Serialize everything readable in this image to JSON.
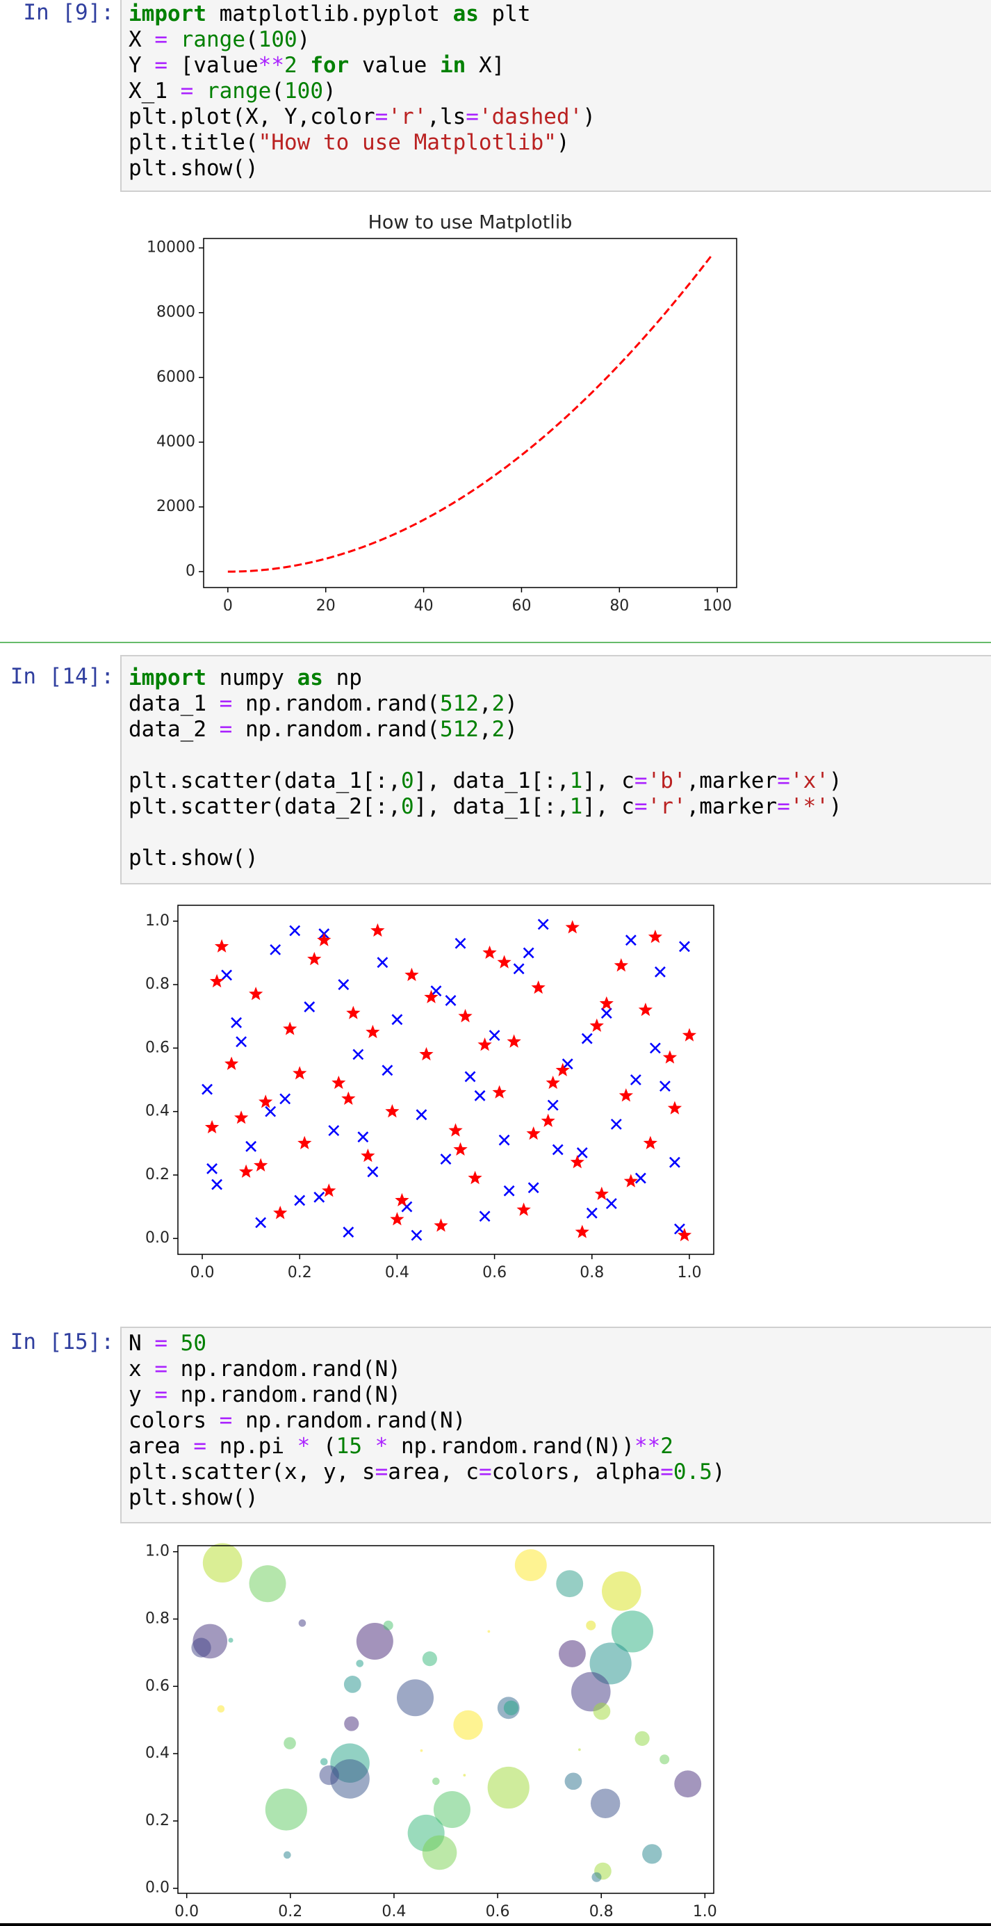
{
  "cells": [
    {
      "prompt": "In [9]:",
      "lines": [
        [
          {
            "text": "import",
            "color": "#008000",
            "bold": true
          },
          " matplotlib.pyplot ",
          {
            "text": "as",
            "color": "#008000",
            "bold": true
          },
          " plt"
        ],
        [
          "X ",
          {
            "text": "=",
            "color": "#aa22ff"
          },
          " ",
          {
            "text": "range",
            "color": "#008000"
          },
          "(",
          {
            "text": "100",
            "color": "#008000"
          },
          ")"
        ],
        [
          "Y ",
          {
            "text": "=",
            "color": "#aa22ff"
          },
          " [value",
          {
            "text": "**",
            "color": "#aa22ff"
          },
          {
            "text": "2",
            "color": "#008000"
          },
          " ",
          {
            "text": "for",
            "color": "#008000",
            "bold": true
          },
          " value ",
          {
            "text": "in",
            "color": "#008000",
            "bold": true
          },
          " X]"
        ],
        [
          "X_1 ",
          {
            "text": "=",
            "color": "#aa22ff"
          },
          " ",
          {
            "text": "range",
            "color": "#008000"
          },
          "(",
          {
            "text": "100",
            "color": "#008000"
          },
          ")"
        ],
        [
          "plt.plot(X, Y,color",
          {
            "text": "=",
            "color": "#aa22ff"
          },
          {
            "text": "'r'",
            "color": "#ba2121"
          },
          ",ls",
          {
            "text": "=",
            "color": "#aa22ff"
          },
          {
            "text": "'dashed'",
            "color": "#ba2121"
          },
          ")"
        ],
        [
          "plt.title(",
          {
            "text": "\"How to use Matplotlib\"",
            "color": "#ba2121"
          },
          ")"
        ],
        [
          "plt.show()"
        ]
      ],
      "chart_data": {
        "type": "line",
        "title": "How to use Matplotlib",
        "color": "#ff0000",
        "line_style": "dashed",
        "x": [
          0,
          1,
          2,
          3,
          4,
          5,
          6,
          7,
          8,
          9,
          10,
          11,
          12,
          13,
          14,
          15,
          16,
          17,
          18,
          19,
          20,
          21,
          22,
          23,
          24,
          25,
          26,
          27,
          28,
          29,
          30,
          31,
          32,
          33,
          34,
          35,
          36,
          37,
          38,
          39,
          40,
          41,
          42,
          43,
          44,
          45,
          46,
          47,
          48,
          49,
          50,
          51,
          52,
          53,
          54,
          55,
          56,
          57,
          58,
          59,
          60,
          61,
          62,
          63,
          64,
          65,
          66,
          67,
          68,
          69,
          70,
          71,
          72,
          73,
          74,
          75,
          76,
          77,
          78,
          79,
          80,
          81,
          82,
          83,
          84,
          85,
          86,
          87,
          88,
          89,
          90,
          91,
          92,
          93,
          94,
          95,
          96,
          97,
          98,
          99
        ],
        "values": [
          0,
          1,
          4,
          9,
          16,
          25,
          36,
          49,
          64,
          81,
          100,
          121,
          144,
          169,
          196,
          225,
          256,
          289,
          324,
          361,
          400,
          441,
          484,
          529,
          576,
          625,
          676,
          729,
          784,
          841,
          900,
          961,
          1024,
          1089,
          1156,
          1225,
          1296,
          1369,
          1444,
          1521,
          1600,
          1681,
          1764,
          1849,
          1936,
          2025,
          2116,
          2209,
          2304,
          2401,
          2500,
          2601,
          2704,
          2809,
          2916,
          3025,
          3136,
          3249,
          3364,
          3481,
          3600,
          3721,
          3844,
          3969,
          4096,
          4225,
          4356,
          4489,
          4624,
          4761,
          4900,
          5041,
          5184,
          5329,
          5476,
          5625,
          5776,
          5929,
          6084,
          6241,
          6400,
          6561,
          6724,
          6889,
          7056,
          7225,
          7396,
          7569,
          7744,
          7921,
          8100,
          8281,
          8464,
          8649,
          8836,
          9025,
          9216,
          9409,
          9604,
          9801
        ],
        "xlim": [
          -4.95,
          103.95
        ],
        "xticks": [
          0,
          20,
          40,
          60,
          80,
          100
        ],
        "ylim": [
          -490.05,
          10291.05
        ],
        "yticks": [
          0,
          2000,
          4000,
          6000,
          8000,
          10000
        ]
      }
    },
    {
      "prompt": "In [14]:",
      "lines": [
        [
          {
            "text": "import",
            "color": "#008000",
            "bold": true
          },
          " numpy ",
          {
            "text": "as",
            "color": "#008000",
            "bold": true
          },
          " np"
        ],
        [
          "data_1 ",
          {
            "text": "=",
            "color": "#aa22ff"
          },
          " np.random.rand(",
          {
            "text": "512",
            "color": "#008000"
          },
          ",",
          {
            "text": "2",
            "color": "#008000"
          },
          ")"
        ],
        [
          "data_2 ",
          {
            "text": "=",
            "color": "#aa22ff"
          },
          " np.random.rand(",
          {
            "text": "512",
            "color": "#008000"
          },
          ",",
          {
            "text": "2",
            "color": "#008000"
          },
          ")"
        ],
        [],
        [
          "plt.scatter(data_1[:,",
          {
            "text": "0",
            "color": "#008000"
          },
          "], data_1[:,",
          {
            "text": "1",
            "color": "#008000"
          },
          "], c",
          {
            "text": "=",
            "color": "#aa22ff"
          },
          {
            "text": "'b'",
            "color": "#ba2121"
          },
          ",marker",
          {
            "text": "=",
            "color": "#aa22ff"
          },
          {
            "text": "'x'",
            "color": "#ba2121"
          },
          ")"
        ],
        [
          "plt.scatter(data_2[:,",
          {
            "text": "0",
            "color": "#008000"
          },
          "], data_1[:,",
          {
            "text": "1",
            "color": "#008000"
          },
          "], c",
          {
            "text": "=",
            "color": "#aa22ff"
          },
          {
            "text": "'r'",
            "color": "#ba2121"
          },
          ",marker",
          {
            "text": "=",
            "color": "#aa22ff"
          },
          {
            "text": "'*'",
            "color": "#ba2121"
          },
          ")"
        ],
        [],
        [
          "plt.show()"
        ]
      ],
      "chart_data": {
        "type": "scatter",
        "series": [
          {
            "color": "#0000ff",
            "marker": "x",
            "x": [
              0.01,
              0.03,
              0.05,
              0.08,
              0.1,
              0.12,
              0.15,
              0.17,
              0.2,
              0.22,
              0.25,
              0.27,
              0.3,
              0.32,
              0.35,
              0.37,
              0.4,
              0.42,
              0.45,
              0.48,
              0.5,
              0.53,
              0.55,
              0.58,
              0.6,
              0.62,
              0.65,
              0.68,
              0.7,
              0.72,
              0.75,
              0.78,
              0.8,
              0.83,
              0.85,
              0.88,
              0.9,
              0.93,
              0.95,
              0.98,
              0.02,
              0.07,
              0.14,
              0.19,
              0.24,
              0.29,
              0.33,
              0.38,
              0.44,
              0.51,
              0.57,
              0.63,
              0.67,
              0.73,
              0.79,
              0.84,
              0.89,
              0.94,
              0.97,
              0.99
            ],
            "values": [
              0.47,
              0.17,
              0.83,
              0.62,
              0.29,
              0.05,
              0.91,
              0.44,
              0.12,
              0.73,
              0.96,
              0.34,
              0.02,
              0.58,
              0.21,
              0.87,
              0.69,
              0.1,
              0.39,
              0.78,
              0.25,
              0.93,
              0.51,
              0.07,
              0.64,
              0.31,
              0.85,
              0.16,
              0.99,
              0.42,
              0.55,
              0.27,
              0.08,
              0.71,
              0.36,
              0.94,
              0.19,
              0.6,
              0.48,
              0.03,
              0.22,
              0.68,
              0.4,
              0.97,
              0.13,
              0.8,
              0.32,
              0.53,
              0.01,
              0.75,
              0.45,
              0.15,
              0.9,
              0.28,
              0.63,
              0.11,
              0.5,
              0.84,
              0.24,
              0.92
            ]
          },
          {
            "color": "#ff0000",
            "marker": "star",
            "x": [
              0.02,
              0.04,
              0.06,
              0.09,
              0.11,
              0.13,
              0.16,
              0.18,
              0.21,
              0.23,
              0.26,
              0.28,
              0.31,
              0.34,
              0.36,
              0.39,
              0.41,
              0.43,
              0.46,
              0.49,
              0.52,
              0.54,
              0.56,
              0.59,
              0.61,
              0.64,
              0.66,
              0.69,
              0.71,
              0.74,
              0.76,
              0.77,
              0.81,
              0.82,
              0.86,
              0.87,
              0.91,
              0.92,
              0.96,
              0.99,
              0.03,
              0.08,
              0.12,
              0.2,
              0.25,
              0.3,
              0.35,
              0.4,
              0.47,
              0.53,
              0.58,
              0.62,
              0.68,
              0.72,
              0.78,
              0.83,
              0.88,
              0.93,
              0.97,
              1.0
            ],
            "values": [
              0.35,
              0.92,
              0.55,
              0.21,
              0.77,
              0.43,
              0.08,
              0.66,
              0.3,
              0.88,
              0.15,
              0.49,
              0.71,
              0.26,
              0.97,
              0.4,
              0.12,
              0.83,
              0.58,
              0.04,
              0.34,
              0.7,
              0.19,
              0.9,
              0.46,
              0.62,
              0.09,
              0.79,
              0.37,
              0.53,
              0.98,
              0.24,
              0.67,
              0.14,
              0.86,
              0.45,
              0.72,
              0.3,
              0.57,
              0.01,
              0.81,
              0.38,
              0.23,
              0.52,
              0.94,
              0.44,
              0.65,
              0.06,
              0.76,
              0.28,
              0.61,
              0.87,
              0.33,
              0.49,
              0.02,
              0.74,
              0.18,
              0.95,
              0.41,
              0.64
            ]
          }
        ],
        "xlim": [
          -0.05,
          1.05
        ],
        "xticks": [
          {
            "value": 0,
            "label": "0.0"
          },
          0.2,
          0.4,
          0.6,
          0.8,
          {
            "value": 1,
            "label": "1.0"
          }
        ],
        "ylim": [
          -0.05,
          1.05
        ],
        "yticks": [
          {
            "value": 0,
            "label": "0.0"
          },
          0.2,
          0.4,
          0.6,
          0.8,
          {
            "value": 1,
            "label": "1.0"
          }
        ]
      }
    },
    {
      "prompt": "In [15]:",
      "lines": [
        [
          "N ",
          {
            "text": "=",
            "color": "#aa22ff"
          },
          " ",
          {
            "text": "50",
            "color": "#008000"
          }
        ],
        [
          "x ",
          {
            "text": "=",
            "color": "#aa22ff"
          },
          " np.random.rand(N)"
        ],
        [
          "y ",
          {
            "text": "=",
            "color": "#aa22ff"
          },
          " np.random.rand(N)"
        ],
        [
          "colors ",
          {
            "text": "=",
            "color": "#aa22ff"
          },
          " np.random.rand(N)"
        ],
        [
          "area ",
          {
            "text": "=",
            "color": "#aa22ff"
          },
          " np.pi ",
          {
            "text": "*",
            "color": "#aa22ff"
          },
          " (",
          {
            "text": "15",
            "color": "#008000"
          },
          " ",
          {
            "text": "*",
            "color": "#aa22ff"
          },
          " np.random.rand(N))",
          {
            "text": "**",
            "color": "#aa22ff"
          },
          {
            "text": "2",
            "color": "#008000"
          }
        ],
        [
          "plt.scatter(x, y, s",
          {
            "text": "=",
            "color": "#aa22ff"
          },
          "area, c",
          {
            "text": "=",
            "color": "#aa22ff"
          },
          "colors, alpha",
          {
            "text": "=",
            "color": "#aa22ff"
          },
          {
            "text": "0.5",
            "color": "#008000"
          },
          ")"
        ],
        [
          "plt.show()"
        ]
      ],
      "chart_data": {
        "type": "bubble",
        "alpha": 0.5,
        "x": [
          0.069,
          0.156,
          0.045,
          0.028,
          0.085,
          0.066,
          0.223,
          0.664,
          0.739,
          0.839,
          0.86,
          0.78,
          0.363,
          0.389,
          0.32,
          0.469,
          0.441,
          0.334,
          0.583,
          0.621,
          0.626,
          0.744,
          0.818,
          0.78,
          0.801,
          0.318,
          0.543,
          0.199,
          0.879,
          0.315,
          0.315,
          0.275,
          0.265,
          0.453,
          0.481,
          0.536,
          0.621,
          0.746,
          0.758,
          0.922,
          0.967,
          0.192,
          0.512,
          0.808,
          0.462,
          0.488,
          0.194,
          0.898,
          0.803,
          0.791
        ],
        "values": [
          0.967,
          0.905,
          0.734,
          0.715,
          0.737,
          0.533,
          0.788,
          0.96,
          0.905,
          0.883,
          0.763,
          0.781,
          0.734,
          0.781,
          0.606,
          0.682,
          0.566,
          0.668,
          0.763,
          0.536,
          0.536,
          0.697,
          0.668,
          0.584,
          0.526,
          0.489,
          0.485,
          0.431,
          0.445,
          0.372,
          0.325,
          0.336,
          0.376,
          0.409,
          0.318,
          0.336,
          0.299,
          0.318,
          0.412,
          0.383,
          0.31,
          0.234,
          0.234,
          0.252,
          0.164,
          0.106,
          0.099,
          0.102,
          0.051,
          0.033
        ],
        "sizes": [
          455,
          400,
          350,
          114,
          7,
          16,
          16,
          300,
          215,
          455,
          515,
          28,
          400,
          28,
          87,
          64,
          400,
          16,
          2,
          144,
          64,
          215,
          515,
          455,
          87,
          64,
          256,
          44,
          64,
          455,
          455,
          114,
          16,
          2,
          16,
          2,
          515,
          87,
          2,
          28,
          215,
          515,
          400,
          256,
          400,
          350,
          16,
          114,
          87,
          28
        ],
        "colors": [
          "#b5de2b",
          "#6ccd5a",
          "#46337e",
          "#414487",
          "#22a884",
          "#fde725",
          "#433e85",
          "#fde725",
          "#2e9e8a",
          "#d8e219",
          "#29af7f",
          "#e5e419",
          "#482878",
          "#4ac16d",
          "#21918c",
          "#35b779",
          "#3b528b",
          "#1f9e89",
          "#fde725",
          "#31688e",
          "#21a585",
          "#482878",
          "#21918c",
          "#443983",
          "#a0da39",
          "#472d7b",
          "#fde725",
          "#5ec962",
          "#8fd744",
          "#26a387",
          "#39568c",
          "#3e4a89",
          "#1fa187",
          "#fde725",
          "#5ec962",
          "#dce319",
          "#a0da39",
          "#2c728e",
          "#b8de29",
          "#6ccd5a",
          "#472d7b",
          "#5ec962",
          "#54c568",
          "#3b528b",
          "#35b779",
          "#7ad151",
          "#26828e",
          "#25858e",
          "#a0da39",
          "#2a788e"
        ],
        "xlim": [
          -0.017,
          1.017
        ],
        "xticks": [
          {
            "value": 0,
            "label": "0.0"
          },
          0.2,
          0.4,
          0.6,
          0.8,
          {
            "value": 1,
            "label": "1.0"
          }
        ],
        "ylim": [
          -0.015,
          1.018
        ],
        "yticks": [
          {
            "value": 0,
            "label": "0.0"
          },
          0.2,
          0.4,
          0.6,
          0.8,
          {
            "value": 1,
            "label": "1.0"
          }
        ]
      }
    }
  ]
}
